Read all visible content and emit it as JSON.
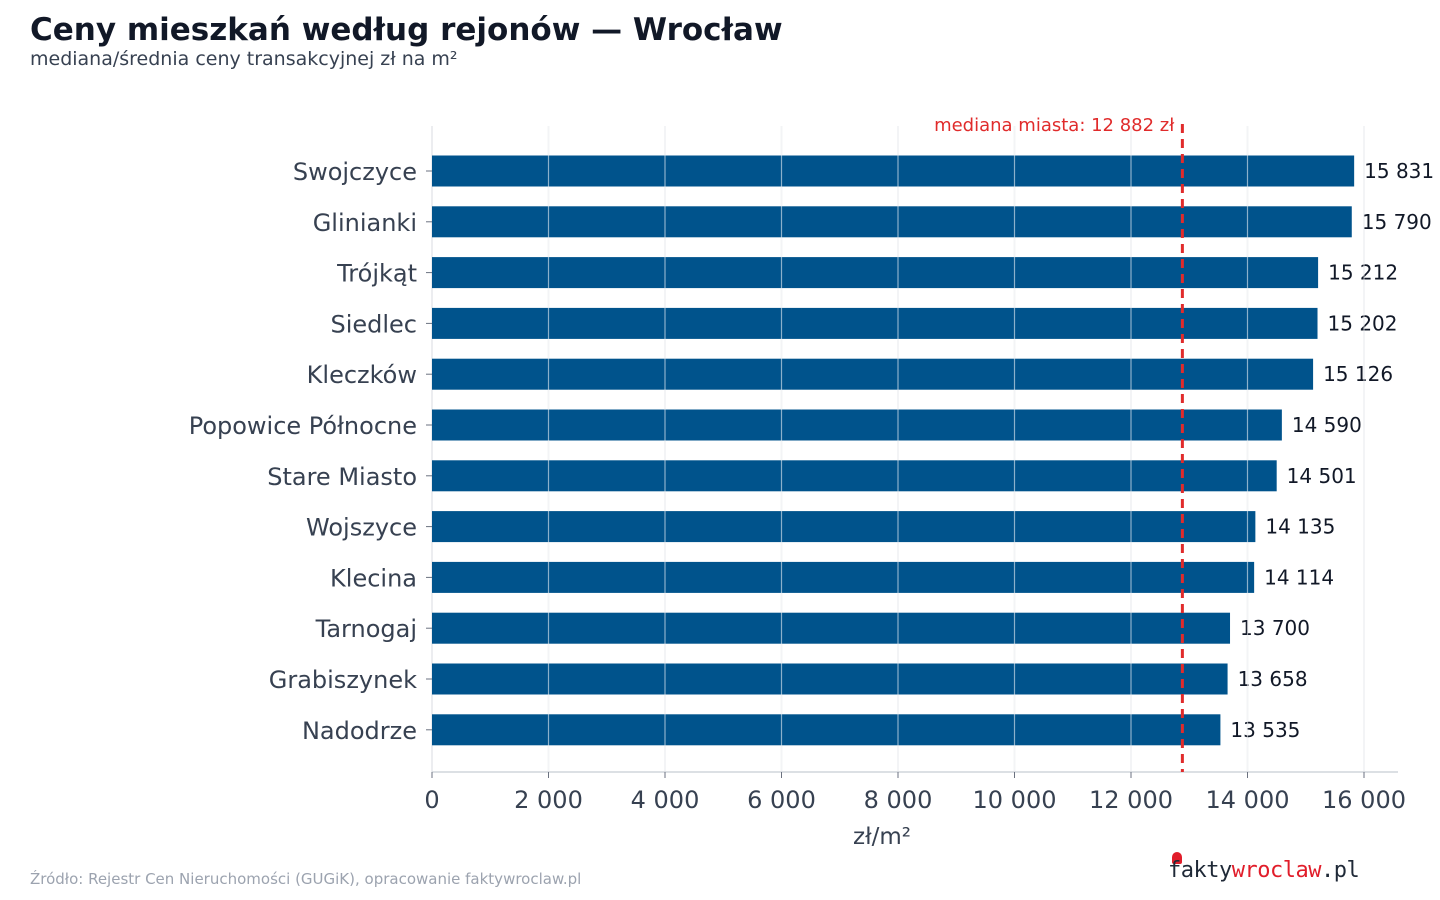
{
  "header": {
    "title": "Ceny mieszkań według rejonów — Wrocław",
    "subtitle": "mediana/średnia ceny transakcyjnej zł na m²"
  },
  "footer": {
    "source": "Źródło: Rejestr Cen Nieruchomości (GUGiK), opracowanie faktywroclaw.pl"
  },
  "logo": {
    "part1": "fakty",
    "part2": "wroclaw",
    "part3": ".pl"
  },
  "colors": {
    "bar": "#00538C",
    "median_line": "#E02B2B",
    "grid": "#e5e7eb",
    "tick_text": "#374151"
  },
  "chart_data": {
    "type": "bar",
    "orientation": "horizontal",
    "categories": [
      "Swojczyce",
      "Glinianki",
      "Trójkąt",
      "Siedlec",
      "Kleczków",
      "Popowice Północne",
      "Stare Miasto",
      "Wojszyce",
      "Klecina",
      "Tarnogaj",
      "Grabiszynek",
      "Nadodrze"
    ],
    "values": [
      15831,
      15790,
      15212,
      15202,
      15126,
      14590,
      14501,
      14135,
      14114,
      13700,
      13658,
      13535
    ],
    "value_labels": [
      "15 831",
      "15 790",
      "15 212",
      "15 202",
      "15 126",
      "14 590",
      "14 501",
      "14 135",
      "14 114",
      "13 700",
      "13 658",
      "13 535"
    ],
    "xlabel": "zł/m²",
    "ylabel": "",
    "xlim": [
      0,
      16000
    ],
    "xticks": [
      0,
      2000,
      4000,
      6000,
      8000,
      10000,
      12000,
      14000,
      16000
    ],
    "xtick_labels": [
      "0",
      "2 000",
      "4 000",
      "6 000",
      "8 000",
      "10 000",
      "12 000",
      "14 000",
      "16 000"
    ],
    "reference_line": {
      "value": 12882,
      "label": "mediana miasta: 12 882 zł",
      "style": "dashed"
    },
    "grid": "vertical"
  }
}
